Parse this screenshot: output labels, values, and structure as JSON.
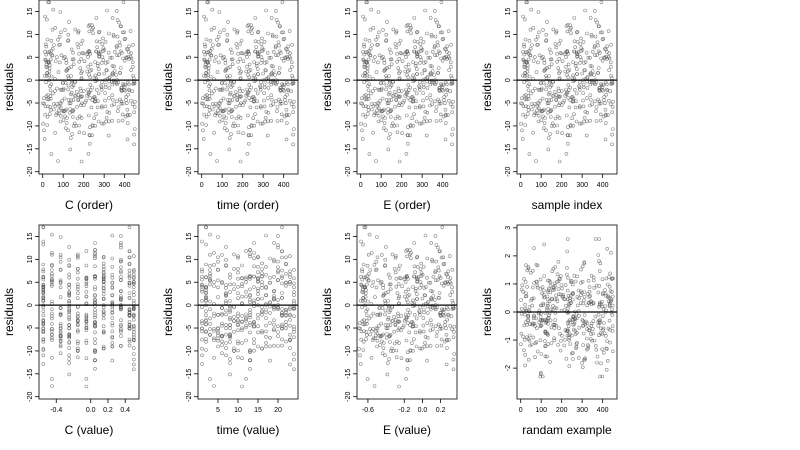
{
  "chart_data": [
    {
      "type": "scatter",
      "xlabel": "C (order)",
      "ylabel": "residuals",
      "x_range": [
        1,
        450
      ],
      "xlim": [
        -18,
        470
      ],
      "ylim": [
        -20.5,
        17.5
      ],
      "xticks": [
        0,
        100,
        200,
        300,
        400
      ],
      "yticks": [
        -20,
        -15,
        -10,
        -5,
        0,
        5,
        10,
        15
      ],
      "y_spread": 7,
      "hline": 0,
      "points": "resid",
      "seed": 11,
      "n": 450
    },
    {
      "type": "scatter",
      "xlabel": "time (order)",
      "ylabel": "residuals",
      "x_range": [
        1,
        450
      ],
      "xlim": [
        -18,
        470
      ],
      "ylim": [
        -20.5,
        17.5
      ],
      "xticks": [
        0,
        100,
        200,
        300,
        400
      ],
      "yticks": [
        -20,
        -15,
        -10,
        -5,
        0,
        5,
        10,
        15
      ],
      "y_spread": 7,
      "hline": 0,
      "points": "resid",
      "seed": 11,
      "n": 450
    },
    {
      "type": "scatter",
      "xlabel": "E (order)",
      "ylabel": "residuals",
      "x_range": [
        1,
        450
      ],
      "xlim": [
        -18,
        470
      ],
      "ylim": [
        -20.5,
        17.5
      ],
      "xticks": [
        0,
        100,
        200,
        300,
        400
      ],
      "yticks": [
        -20,
        -15,
        -10,
        -5,
        0,
        5,
        10,
        15
      ],
      "y_spread": 7,
      "hline": 0,
      "points": "resid",
      "seed": 11,
      "n": 450
    },
    {
      "type": "scatter",
      "xlabel": "sample index",
      "ylabel": "residuals",
      "x_range": [
        1,
        450
      ],
      "xlim": [
        -18,
        470
      ],
      "ylim": [
        -20.5,
        17.5
      ],
      "xticks": [
        0,
        100,
        200,
        300,
        400
      ],
      "yticks": [
        -20,
        -15,
        -10,
        -5,
        0,
        5,
        10,
        15
      ],
      "y_spread": 7,
      "hline": 0,
      "points": "resid",
      "seed": 11,
      "n": 450
    },
    {
      "type": "scatter",
      "xlabel": "C (value)",
      "ylabel": "residuals",
      "x_values": [
        -0.55,
        -0.45,
        -0.35,
        -0.25,
        -0.15,
        -0.05,
        0.05,
        0.15,
        0.25,
        0.35,
        0.45,
        0.5
      ],
      "xlim": [
        -0.6,
        0.56
      ],
      "ylim": [
        -20.5,
        17.5
      ],
      "xticks": [
        -0.4,
        0,
        0.2,
        0.4
      ],
      "xtick_labels": [
        "-0.4",
        "0.0",
        "0.2",
        "0.4"
      ],
      "yticks": [
        -20,
        -15,
        -10,
        -5,
        0,
        5,
        10,
        15
      ],
      "y_spread": 7,
      "hline": 0,
      "points": "resid",
      "seed": 11,
      "n": 450
    },
    {
      "type": "scatter",
      "xlabel": "time (value)",
      "ylabel": "residuals",
      "x_range": [
        1,
        24
      ],
      "discrete": true,
      "xlim": [
        0,
        25
      ],
      "ylim": [
        -20.5,
        17.5
      ],
      "xticks": [
        5,
        10,
        15,
        20
      ],
      "yticks": [
        -20,
        -15,
        -10,
        -5,
        0,
        5,
        10,
        15
      ],
      "y_spread": 7,
      "hline": 0,
      "points": "resid",
      "seed": 11,
      "n": 450
    },
    {
      "type": "scatter",
      "xlabel": "E (value)",
      "ylabel": "residuals",
      "x_range": [
        -0.7,
        0.35
      ],
      "xlim": [
        -0.72,
        0.38
      ],
      "ylim": [
        -20.5,
        17.5
      ],
      "xticks": [
        -0.6,
        -0.2,
        0,
        0.2
      ],
      "xtick_labels": [
        "-0.6",
        "-0.2",
        "0.0",
        "0.2"
      ],
      "yticks": [
        -20,
        -15,
        -10,
        -5,
        0,
        5,
        10,
        15
      ],
      "y_spread": 7,
      "hline": 0,
      "points": "resid",
      "seed": 11,
      "n": 450
    },
    {
      "type": "scatter",
      "xlabel": "randam example",
      "ylabel": "residuals",
      "x_range": [
        1,
        450
      ],
      "xlim": [
        -18,
        470
      ],
      "ylim": [
        -3.1,
        3.1
      ],
      "xticks": [
        0,
        100,
        200,
        300,
        400
      ],
      "yticks": [
        -2,
        -1,
        0,
        1,
        2,
        3
      ],
      "y_spread": 1,
      "hline": 0,
      "points": "normal",
      "seed": 77,
      "n": 450
    }
  ],
  "colors": {
    "point": "#555555",
    "axis": "#000000",
    "background": "#ffffff"
  }
}
